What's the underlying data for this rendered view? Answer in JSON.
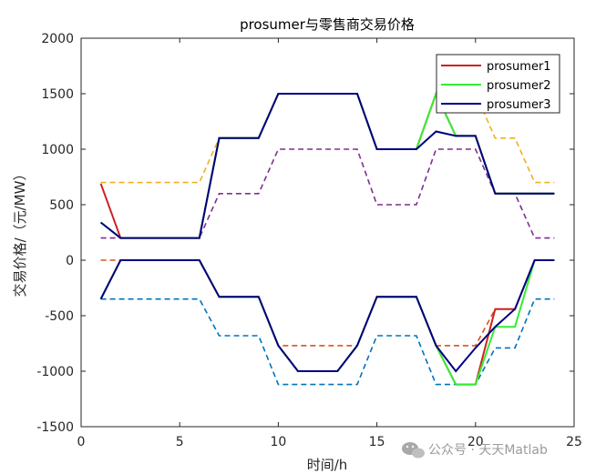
{
  "chart_data": {
    "type": "line",
    "title": "prosumer与零售商交易价格",
    "xlabel": "时间/h",
    "ylabel": "交易价格/（元/MW）",
    "xlim": [
      0,
      25
    ],
    "ylim": [
      -1500,
      2000
    ],
    "xticks": [
      0,
      5,
      10,
      15,
      20,
      25
    ],
    "yticks": [
      -1500,
      -1000,
      -500,
      0,
      500,
      1000,
      1500,
      2000
    ],
    "legend_position": "top-right",
    "grid": false,
    "x": [
      1,
      2,
      3,
      4,
      5,
      6,
      7,
      8,
      9,
      10,
      11,
      12,
      13,
      14,
      15,
      16,
      17,
      18,
      19,
      20,
      21,
      22,
      23,
      24
    ],
    "reference_lines": [
      {
        "color": "#EDB120",
        "style": "dashed",
        "values": [
          700,
          700,
          700,
          700,
          700,
          700,
          1100,
          1100,
          1100,
          1500,
          1500,
          1500,
          1500,
          1500,
          1000,
          1000,
          1000,
          1500,
          1500,
          1500,
          1100,
          1100,
          700,
          700
        ]
      },
      {
        "color": "#7E2F8E",
        "style": "dashed",
        "values": [
          200,
          200,
          200,
          200,
          200,
          200,
          600,
          600,
          600,
          1000,
          1000,
          1000,
          1000,
          1000,
          500,
          500,
          500,
          1000,
          1000,
          1000,
          600,
          600,
          200,
          200
        ]
      },
      {
        "color": "#D95319",
        "style": "dashed",
        "values": [
          0,
          0,
          0,
          0,
          0,
          0,
          -330,
          -330,
          -330,
          -770,
          -770,
          -770,
          -770,
          -770,
          -330,
          -330,
          -330,
          -770,
          -770,
          -770,
          -440,
          -440,
          0,
          0
        ]
      },
      {
        "color": "#0072BD",
        "style": "dashed",
        "values": [
          -350,
          -350,
          -350,
          -350,
          -350,
          -350,
          -680,
          -680,
          -680,
          -1120,
          -1120,
          -1120,
          -1120,
          -1120,
          -680,
          -680,
          -680,
          -1120,
          -1120,
          -1120,
          -790,
          -790,
          -350,
          -350
        ]
      }
    ],
    "series": [
      {
        "name": "prosumer1",
        "color": "#CC2222",
        "values_sell": [
          690,
          200,
          200,
          200,
          200,
          200,
          1100,
          1100,
          1100,
          1500,
          1500,
          1500,
          1500,
          1500,
          1000,
          1000,
          1000,
          1500,
          1120,
          1120,
          600,
          600,
          600,
          600
        ],
        "values_buy": [
          -350,
          0,
          0,
          0,
          0,
          0,
          -330,
          -330,
          -330,
          -770,
          -1000,
          -1000,
          -1000,
          -770,
          -330,
          -330,
          -330,
          -770,
          -1120,
          -1120,
          -440,
          -440,
          0,
          0
        ]
      },
      {
        "name": "prosumer2",
        "color": "#33EE33",
        "values_sell": [
          340,
          200,
          200,
          200,
          200,
          200,
          1100,
          1100,
          1100,
          1500,
          1500,
          1500,
          1500,
          1500,
          1000,
          1000,
          1000,
          1500,
          1120,
          1120,
          600,
          600,
          600,
          600
        ],
        "values_buy": [
          -350,
          0,
          0,
          0,
          0,
          0,
          -330,
          -330,
          -330,
          -770,
          -1000,
          -1000,
          -1000,
          -770,
          -330,
          -330,
          -330,
          -770,
          -1120,
          -1120,
          -600,
          -600,
          0,
          0
        ]
      },
      {
        "name": "prosumer3",
        "color": "#000080",
        "values_sell": [
          340,
          200,
          200,
          200,
          200,
          200,
          1100,
          1100,
          1100,
          1500,
          1500,
          1500,
          1500,
          1500,
          1000,
          1000,
          1000,
          1160,
          1120,
          1120,
          600,
          600,
          600,
          600
        ],
        "values_buy": [
          -350,
          0,
          0,
          0,
          0,
          0,
          -330,
          -330,
          -330,
          -770,
          -1000,
          -1000,
          -1000,
          -770,
          -330,
          -330,
          -330,
          -770,
          -1000,
          -790,
          -600,
          -440,
          0,
          0
        ]
      }
    ]
  },
  "watermark": {
    "text": "公众号 · 天天Matlab",
    "icon": "wechat-icon"
  }
}
